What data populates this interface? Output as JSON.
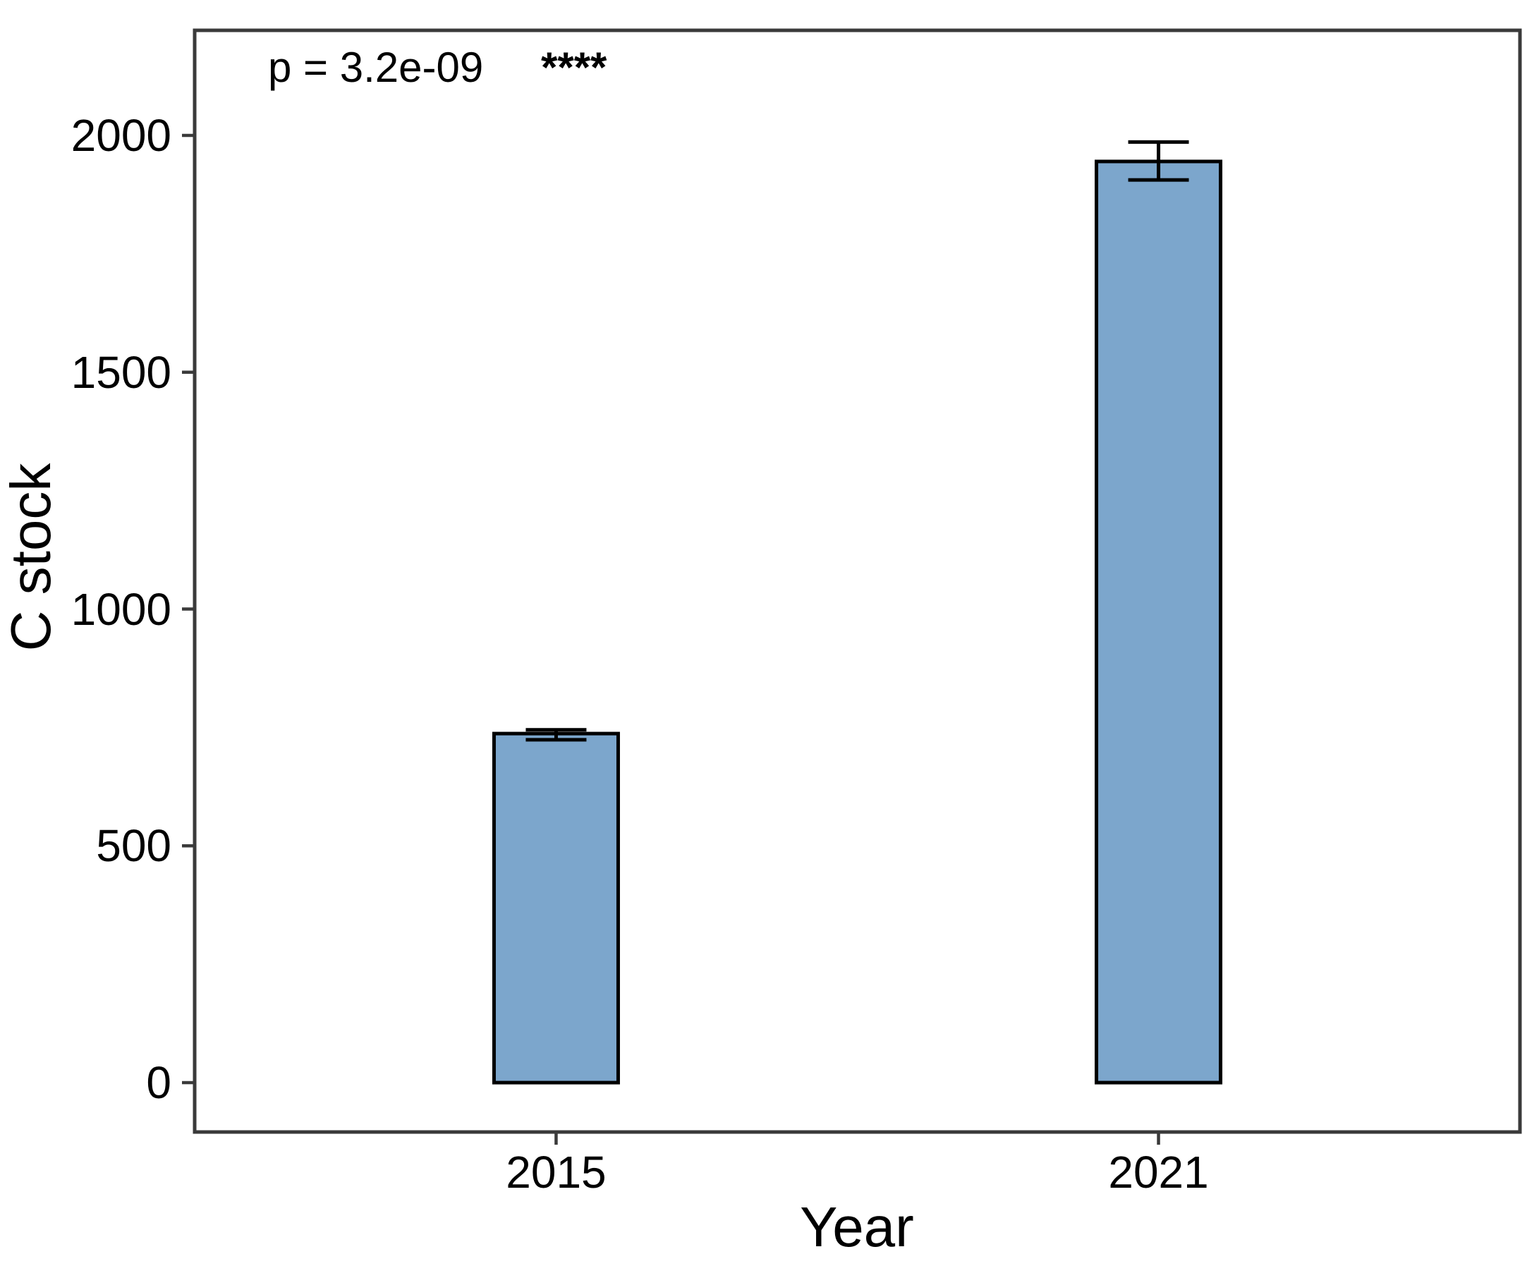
{
  "annotation": {
    "p_label": "p = 3.2e-09",
    "significance": "****"
  },
  "chart_data": {
    "type": "bar",
    "title": "",
    "xlabel": "Year",
    "ylabel": "C stock",
    "categories": [
      "2015",
      "2021"
    ],
    "series": [
      {
        "name": "C stock",
        "values": [
          737,
          1945
        ]
      }
    ],
    "error_bars": [
      {
        "low": 724,
        "high": 745
      },
      {
        "low": 1906,
        "high": 1986
      }
    ],
    "y_ticks": [
      0,
      500,
      1000,
      1500,
      2000
    ],
    "ylim": [
      -104,
      2224
    ],
    "grid": false,
    "legend": false,
    "annotations": [
      "p = 3.2e-09",
      "****"
    ],
    "colors": {
      "bar_fill": "#7CA6CC",
      "bar_stroke": "#000000",
      "axis": "#3A3A3A",
      "text": "#000000",
      "background": "#FFFFFF"
    }
  }
}
